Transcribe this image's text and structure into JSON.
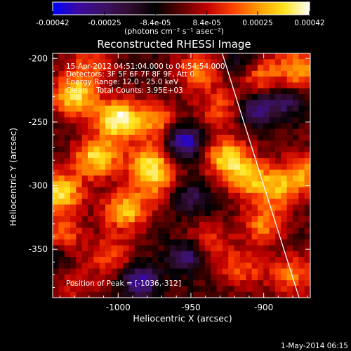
{
  "colorbar": {
    "ticks": [
      "-0.00042",
      "-0.00025",
      "-8.4e-05",
      "8.4e-05",
      "0.00025",
      "0.00042"
    ],
    "tick_values": [
      -0.00042,
      -0.00025,
      -8.4e-05,
      8.4e-05,
      0.00025,
      0.00042
    ],
    "range": [
      -0.00042,
      0.00042
    ],
    "units_label": "(photons cm⁻² s⁻¹ asec⁻²)",
    "colormap": [
      "#0000ff",
      "#3c0aa0",
      "#3b1265",
      "#300c2e",
      "#000000",
      "#5c0000",
      "#c00000",
      "#ff4000",
      "#ff9a00",
      "#ffe31a",
      "#ffffff"
    ]
  },
  "chart_data": {
    "type": "heatmap",
    "title": "Reconstructed RHESSI Image",
    "xlabel": "Heliocentric X (arcsec)",
    "ylabel": "Heliocentric Y (arcsec)",
    "xlim": [
      -1045,
      -868
    ],
    "ylim": [
      -388,
      -196
    ],
    "xticks": [
      -1000,
      -950,
      -900
    ],
    "yticks": [
      -350,
      -300,
      -250,
      -200
    ],
    "xtick_labels": [
      "-1000",
      "-950",
      "-900"
    ],
    "ytick_labels": [
      "-350",
      "-300",
      "-250",
      "-200"
    ],
    "grid": false,
    "limb_line": [
      [
        -928.5,
        -196
      ],
      [
        -875.7,
        -388
      ]
    ],
    "sources": [
      {
        "x": -1000,
        "y": -248,
        "amp": 1.0
      },
      {
        "x": -1030,
        "y": -230,
        "amp": 0.85
      },
      {
        "x": -1015,
        "y": -278,
        "amp": 0.85
      },
      {
        "x": -978,
        "y": -283,
        "amp": 0.8
      },
      {
        "x": -1040,
        "y": -305,
        "amp": 0.9
      },
      {
        "x": -995,
        "y": -320,
        "amp": 0.75
      },
      {
        "x": -973,
        "y": -250,
        "amp": 0.55
      },
      {
        "x": -925,
        "y": -278,
        "amp": 0.8
      },
      {
        "x": -910,
        "y": -295,
        "amp": 0.65
      },
      {
        "x": -888,
        "y": -302,
        "amp": 0.6
      },
      {
        "x": -900,
        "y": -330,
        "amp": 0.55
      },
      {
        "x": -870,
        "y": -288,
        "amp": 0.6
      },
      {
        "x": -945,
        "y": -210,
        "amp": 0.55
      },
      {
        "x": -905,
        "y": -212,
        "amp": 0.6
      },
      {
        "x": -875,
        "y": -208,
        "amp": 0.7
      },
      {
        "x": -1020,
        "y": -205,
        "amp": 0.45
      },
      {
        "x": -1005,
        "y": -355,
        "amp": 0.45
      },
      {
        "x": -940,
        "y": -345,
        "amp": 0.45
      },
      {
        "x": -915,
        "y": -365,
        "amp": 0.45
      },
      {
        "x": -880,
        "y": -370,
        "amp": 0.55
      },
      {
        "x": -1040,
        "y": -340,
        "amp": 0.55
      },
      {
        "x": -930,
        "y": -240,
        "amp": 0.45
      },
      {
        "x": -1030,
        "y": -380,
        "amp": 0.3
      },
      {
        "x": -975,
        "y": -300,
        "amp": 0.4
      }
    ],
    "negatives": [
      {
        "x": -955,
        "y": -265,
        "amp": 0.9
      },
      {
        "x": -985,
        "y": -375,
        "amp": 0.8
      },
      {
        "x": -952,
        "y": -355,
        "amp": 0.7
      },
      {
        "x": -905,
        "y": -240,
        "amp": 0.6
      },
      {
        "x": -915,
        "y": -205,
        "amp": 0.5
      },
      {
        "x": -1045,
        "y": -355,
        "amp": 0.4
      },
      {
        "x": -950,
        "y": -310,
        "amp": 0.5
      },
      {
        "x": -885,
        "y": -235,
        "amp": 0.45
      }
    ],
    "annotations": {
      "time_range": "15-Apr-2012 04:51:04.000 to 04:54:54.000",
      "detectors": "Detectors: 3F 5F 6F 7F 8F 9F, Att 0",
      "energy": "Energy Range: 12.0 - 25.0 keV",
      "clean": "Clean    Total Counts: 3.95E+03",
      "peak": "Position of Peak = [-1036,-312]"
    }
  },
  "footer": {
    "date": "1-May-2014 06:15"
  }
}
